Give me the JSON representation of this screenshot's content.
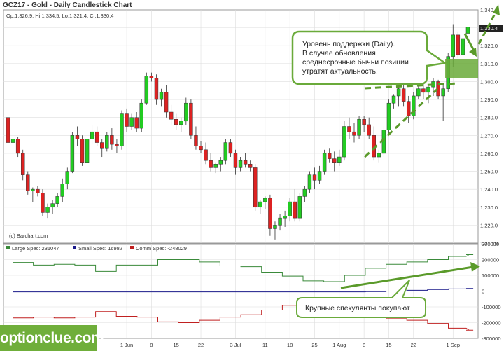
{
  "title": "GCZ17 - Gold - Daily Candlestick Chart",
  "ohlc_label": "Op:1,326.9, Hi:1,334.5, Lo:1,321.4, Cl:1,330.4",
  "credit": "(c) Barchart.com",
  "last_price_label": "1,330.4",
  "brand": "optionclue.com",
  "colors": {
    "up": "#22cc22",
    "down": "#dd2222",
    "large_spec": "#3a8a3a",
    "small_spec": "#1a1a8a",
    "comm_spec": "#c02020",
    "annotation": "#6aaa3a",
    "grid": "#dddddd"
  },
  "annotations": {
    "support_text": [
      "Уровень поддержки (Daily).",
      "В случае обновления",
      "среднесрочные бычьи позиции",
      "утратят актуальность."
    ],
    "spec_text": "Крупные спекулянты покупают"
  },
  "chart_data": [
    {
      "type": "candlestick",
      "title": "GCZ17 - Gold - Daily Candlestick Chart",
      "ylim": [
        1210,
        1340
      ],
      "y_ticks": [
        1210,
        1220,
        1230,
        1240,
        1250,
        1260,
        1270,
        1280,
        1290,
        1300,
        1310,
        1320,
        1330,
        1340
      ],
      "y_tick_labels": [
        "1,210.0",
        "1,220.0",
        "1,230.0",
        "1,240.0",
        "1,250.0",
        "1,260.0",
        "1,270.0",
        "1,280.0",
        "1,290.0",
        "1,300.0",
        "1,310.0",
        "1,320.0",
        "1,330.0",
        "1,340.0"
      ],
      "x_labels": [
        {
          "label": "1 Jun",
          "index": 24
        },
        {
          "label": "8",
          "index": 29
        },
        {
          "label": "15",
          "index": 34
        },
        {
          "label": "22",
          "index": 39
        },
        {
          "label": "3 Jul",
          "index": 46
        },
        {
          "label": "11",
          "index": 52
        },
        {
          "label": "18",
          "index": 57
        },
        {
          "label": "25",
          "index": 62
        },
        {
          "label": "1 Aug",
          "index": 67
        },
        {
          "label": "8",
          "index": 72
        },
        {
          "label": "15",
          "index": 77
        },
        {
          "label": "22",
          "index": 82
        },
        {
          "label": "1 Sep",
          "index": 90
        }
      ],
      "candles": [
        [
          1280,
          1281,
          1264,
          1266
        ],
        [
          1266,
          1270,
          1258,
          1268
        ],
        [
          1268,
          1269,
          1258,
          1260
        ],
        [
          1260,
          1262,
          1245,
          1248
        ],
        [
          1248,
          1250,
          1237,
          1239
        ],
        [
          1239,
          1241,
          1233,
          1240
        ],
        [
          1240,
          1242,
          1236,
          1238
        ],
        [
          1238,
          1240,
          1225,
          1227
        ],
        [
          1227,
          1232,
          1224,
          1230
        ],
        [
          1230,
          1234,
          1226,
          1232
        ],
        [
          1232,
          1238,
          1230,
          1236
        ],
        [
          1236,
          1246,
          1233,
          1243
        ],
        [
          1243,
          1252,
          1240,
          1250
        ],
        [
          1250,
          1272,
          1249,
          1270
        ],
        [
          1270,
          1275,
          1264,
          1268
        ],
        [
          1268,
          1270,
          1253,
          1255
        ],
        [
          1255,
          1270,
          1253,
          1268
        ],
        [
          1268,
          1276,
          1265,
          1272
        ],
        [
          1272,
          1275,
          1264,
          1266
        ],
        [
          1266,
          1268,
          1258,
          1263
        ],
        [
          1263,
          1272,
          1261,
          1270
        ],
        [
          1270,
          1274,
          1262,
          1265
        ],
        [
          1265,
          1268,
          1260,
          1264
        ],
        [
          1264,
          1284,
          1262,
          1282
        ],
        [
          1282,
          1285,
          1272,
          1275
        ],
        [
          1275,
          1282,
          1273,
          1280
        ],
        [
          1280,
          1283,
          1272,
          1274
        ],
        [
          1274,
          1290,
          1272,
          1288
        ],
        [
          1288,
          1305,
          1287,
          1303
        ],
        [
          1303,
          1305,
          1300,
          1302
        ],
        [
          1302,
          1304,
          1287,
          1290
        ],
        [
          1290,
          1296,
          1286,
          1294
        ],
        [
          1294,
          1298,
          1280,
          1283
        ],
        [
          1283,
          1287,
          1276,
          1279
        ],
        [
          1279,
          1282,
          1273,
          1276
        ],
        [
          1276,
          1280,
          1272,
          1278
        ],
        [
          1278,
          1291,
          1276,
          1288
        ],
        [
          1288,
          1290,
          1268,
          1270
        ],
        [
          1270,
          1275,
          1262,
          1264
        ],
        [
          1264,
          1267,
          1260,
          1262
        ],
        [
          1262,
          1266,
          1254,
          1256
        ],
        [
          1256,
          1260,
          1250,
          1252
        ],
        [
          1252,
          1255,
          1249,
          1254
        ],
        [
          1254,
          1258,
          1250,
          1256
        ],
        [
          1256,
          1268,
          1254,
          1266
        ],
        [
          1266,
          1268,
          1258,
          1260
        ],
        [
          1260,
          1262,
          1248,
          1252
        ],
        [
          1252,
          1258,
          1250,
          1256
        ],
        [
          1256,
          1260,
          1252,
          1254
        ],
        [
          1254,
          1256,
          1250,
          1252
        ],
        [
          1252,
          1254,
          1228,
          1230
        ],
        [
          1230,
          1234,
          1226,
          1233
        ],
        [
          1233,
          1236,
          1229,
          1235
        ],
        [
          1235,
          1237,
          1214,
          1218
        ],
        [
          1218,
          1222,
          1212,
          1220
        ],
        [
          1220,
          1226,
          1217,
          1224
        ],
        [
          1224,
          1228,
          1219,
          1225
        ],
        [
          1225,
          1235,
          1222,
          1233
        ],
        [
          1233,
          1240,
          1222,
          1224
        ],
        [
          1224,
          1238,
          1222,
          1236
        ],
        [
          1236,
          1242,
          1233,
          1240
        ],
        [
          1240,
          1250,
          1238,
          1248
        ],
        [
          1248,
          1252,
          1240,
          1245
        ],
        [
          1245,
          1253,
          1243,
          1250
        ],
        [
          1250,
          1262,
          1248,
          1260
        ],
        [
          1260,
          1263,
          1255,
          1257
        ],
        [
          1257,
          1261,
          1250,
          1255
        ],
        [
          1255,
          1262,
          1253,
          1258
        ],
        [
          1258,
          1278,
          1256,
          1275
        ],
        [
          1275,
          1280,
          1268,
          1272
        ],
        [
          1272,
          1277,
          1266,
          1270
        ],
        [
          1270,
          1281,
          1268,
          1279
        ],
        [
          1279,
          1281,
          1272,
          1276
        ],
        [
          1276,
          1280,
          1268,
          1270
        ],
        [
          1270,
          1275,
          1256,
          1258
        ],
        [
          1258,
          1262,
          1255,
          1260
        ],
        [
          1260,
          1275,
          1258,
          1273
        ],
        [
          1273,
          1290,
          1271,
          1288
        ],
        [
          1288,
          1293,
          1285,
          1292
        ],
        [
          1292,
          1298,
          1286,
          1296
        ],
        [
          1296,
          1298,
          1286,
          1289
        ],
        [
          1289,
          1292,
          1277,
          1281
        ],
        [
          1281,
          1294,
          1279,
          1292
        ],
        [
          1292,
          1298,
          1290,
          1296
        ],
        [
          1296,
          1300,
          1290,
          1294
        ],
        [
          1294,
          1298,
          1288,
          1297
        ],
        [
          1297,
          1302,
          1292,
          1300
        ],
        [
          1300,
          1301,
          1290,
          1292
        ],
        [
          1292,
          1298,
          1278,
          1296
        ],
        [
          1296,
          1316,
          1294,
          1314
        ],
        [
          1314,
          1332,
          1308,
          1326
        ],
        [
          1326,
          1328,
          1313,
          1315
        ],
        [
          1315,
          1330,
          1314,
          1324
        ],
        [
          1326.9,
          1334.5,
          1321.4,
          1330.4
        ]
      ]
    },
    {
      "type": "line",
      "title": "",
      "ylim": [
        -300000,
        300000
      ],
      "y_ticks": [
        -300000,
        -200000,
        -100000,
        0,
        100000,
        200000,
        300000
      ],
      "y_tick_labels": [
        "-300000",
        "-200000",
        "-100000",
        "0",
        "100000",
        "200000",
        "300000"
      ],
      "legend": [
        {
          "name": "Large Spec: 231047",
          "color": "#3a8a3a"
        },
        {
          "name": "Small Spec: 16982",
          "color": "#1a1a8a"
        },
        {
          "name": "Comm Spec: -248029",
          "color": "#c02020"
        }
      ],
      "series": [
        {
          "name": "Large Spec",
          "color": "#3a8a3a",
          "values": [
            182000,
            182000,
            182000,
            182000,
            182000,
            165000,
            165000,
            165000,
            165000,
            165000,
            170000,
            170000,
            170000,
            170000,
            170000,
            165000,
            165000,
            165000,
            165000,
            165000,
            125000,
            125000,
            125000,
            125000,
            125000,
            165000,
            165000,
            165000,
            165000,
            165000,
            165000,
            165000,
            165000,
            165000,
            165000,
            200000,
            200000,
            200000,
            200000,
            200000,
            200000,
            200000,
            200000,
            200000,
            200000,
            185000,
            185000,
            185000,
            185000,
            185000,
            160000,
            160000,
            160000,
            160000,
            160000,
            155000,
            155000,
            155000,
            155000,
            155000,
            120000,
            120000,
            120000,
            120000,
            120000,
            95000,
            95000,
            95000,
            95000,
            95000,
            65000,
            65000,
            65000,
            65000,
            65000,
            60000,
            60000,
            60000,
            60000,
            60000,
            100000,
            100000,
            100000,
            100000,
            100000,
            145000,
            145000,
            145000,
            145000,
            145000,
            170000,
            170000,
            170000,
            170000,
            170000,
            185000,
            185000,
            185000,
            185000,
            185000,
            200000,
            200000,
            200000,
            200000,
            200000,
            220000,
            220000,
            220000,
            220000,
            220000,
            231047,
            231047
          ]
        },
        {
          "name": "Small Spec",
          "color": "#1a1a8a",
          "values": [
            -5000,
            -5000,
            -5000,
            -5000,
            -5000,
            -5000,
            -5000,
            -5000,
            -5000,
            -5000,
            -5000,
            -5000,
            -5000,
            -5000,
            -5000,
            -5000,
            -5000,
            -5000,
            -5000,
            -5000,
            -5000,
            -5000,
            -5000,
            -5000,
            -5000,
            -5000,
            -5000,
            -5000,
            -5000,
            -5000,
            -5000,
            -5000,
            -5000,
            -5000,
            -5000,
            -5000,
            -5000,
            -5000,
            -5000,
            -5000,
            -5000,
            -5000,
            -5000,
            -5000,
            -5000,
            -5000,
            -5000,
            -5000,
            -5000,
            -5000,
            -5000,
            -5000,
            -5000,
            -5000,
            -5000,
            -5000,
            -5000,
            -5000,
            -5000,
            -5000,
            -5000,
            -5000,
            -5000,
            -5000,
            -5000,
            -5000,
            -5000,
            -5000,
            -5000,
            -5000,
            -5000,
            -5000,
            -5000,
            -5000,
            -5000,
            -5000,
            -5000,
            -5000,
            -5000,
            -5000,
            -5000,
            -5000,
            -5000,
            -5000,
            -5000,
            -3000,
            -3000,
            -3000,
            -3000,
            -3000,
            0,
            0,
            0,
            0,
            0,
            5000,
            5000,
            5000,
            5000,
            5000,
            10000,
            10000,
            10000,
            10000,
            10000,
            14000,
            14000,
            14000,
            14000,
            14000,
            16982,
            16982
          ]
        },
        {
          "name": "Comm Spec",
          "color": "#c02020",
          "values": [
            -170000,
            -170000,
            -170000,
            -170000,
            -170000,
            -165000,
            -165000,
            -165000,
            -165000,
            -165000,
            -170000,
            -170000,
            -170000,
            -170000,
            -170000,
            -165000,
            -165000,
            -165000,
            -165000,
            -165000,
            -130000,
            -130000,
            -130000,
            -130000,
            -130000,
            -160000,
            -160000,
            -160000,
            -160000,
            -160000,
            -165000,
            -165000,
            -165000,
            -165000,
            -165000,
            -195000,
            -195000,
            -195000,
            -195000,
            -195000,
            -200000,
            -200000,
            -200000,
            -200000,
            -200000,
            -185000,
            -185000,
            -185000,
            -185000,
            -185000,
            -165000,
            -165000,
            -165000,
            -165000,
            -165000,
            -150000,
            -150000,
            -150000,
            -150000,
            -150000,
            -120000,
            -120000,
            -120000,
            -120000,
            -120000,
            -90000,
            -90000,
            -90000,
            -90000,
            -90000,
            -60000,
            -60000,
            -60000,
            -60000,
            -60000,
            -55000,
            -55000,
            -55000,
            -55000,
            -55000,
            -95000,
            -95000,
            -95000,
            -95000,
            -95000,
            -140000,
            -140000,
            -140000,
            -140000,
            -140000,
            -175000,
            -175000,
            -175000,
            -175000,
            -175000,
            -185000,
            -185000,
            -185000,
            -185000,
            -185000,
            -205000,
            -205000,
            -205000,
            -205000,
            -205000,
            -235000,
            -235000,
            -235000,
            -235000,
            -235000,
            -248029,
            -248029
          ]
        }
      ]
    }
  ]
}
